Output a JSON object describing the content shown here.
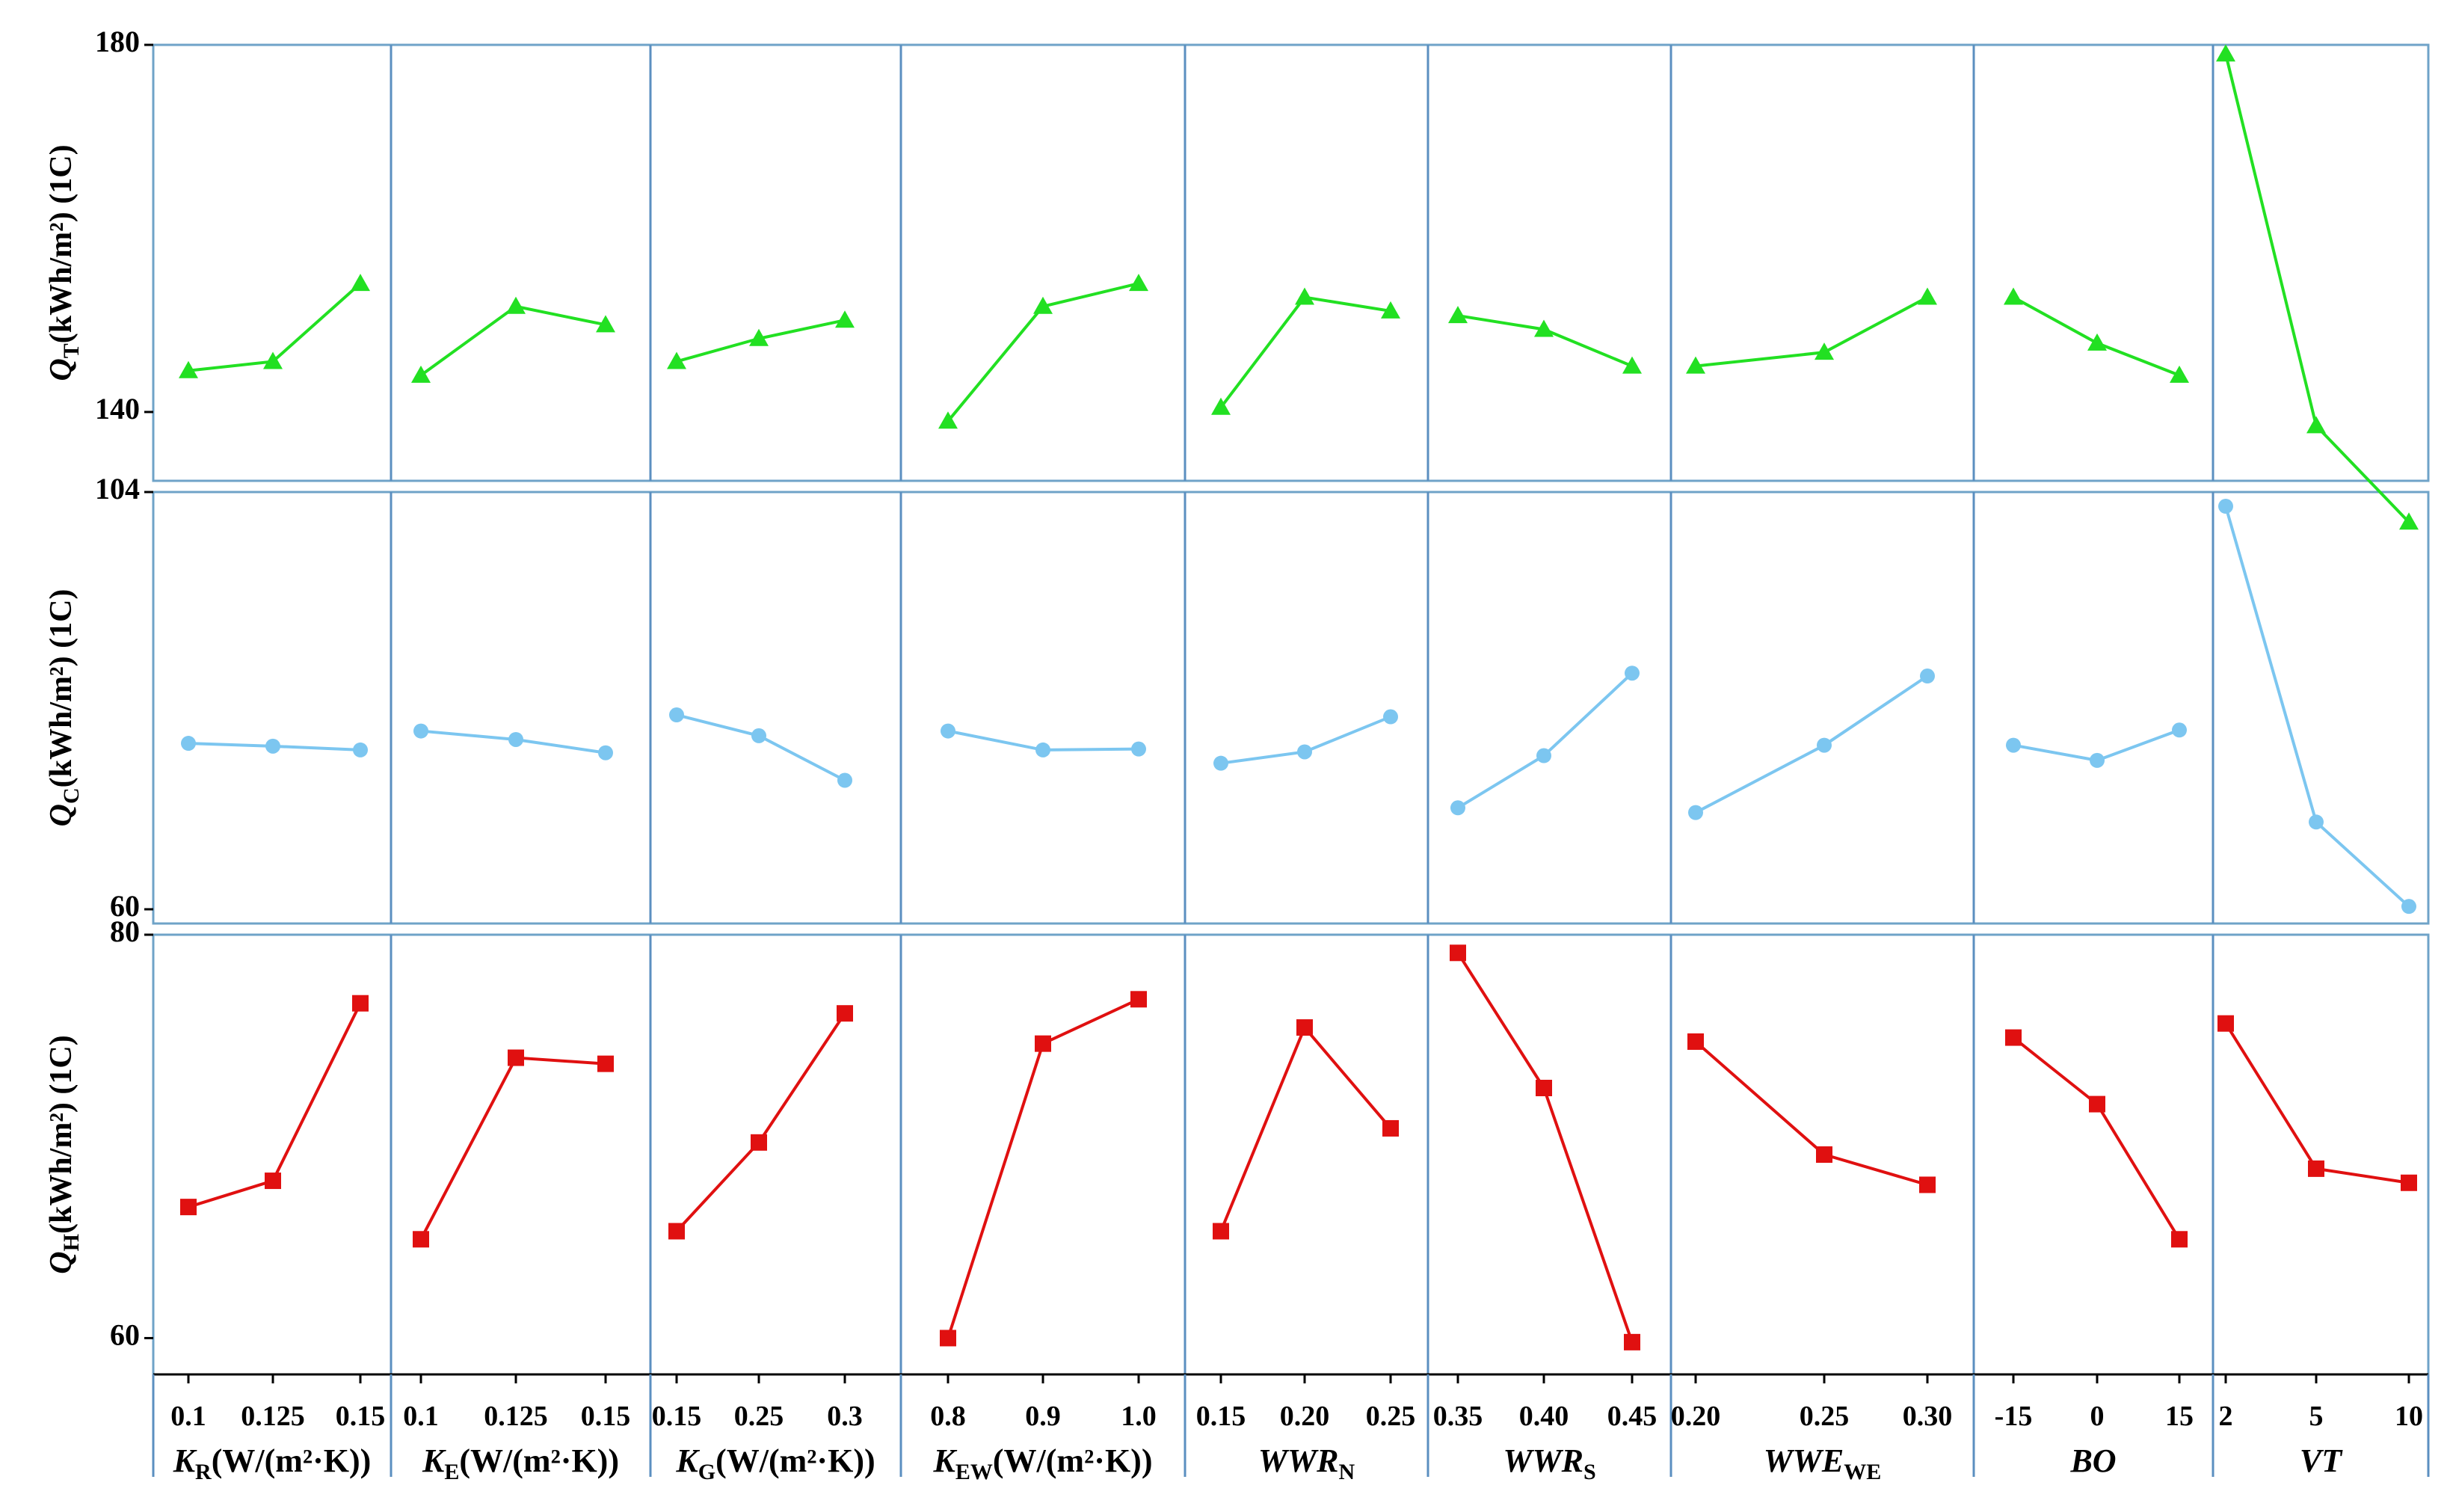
{
  "chart_data": {
    "type": "line",
    "colors": {
      "QT": "#22e022",
      "QC": "#7cc6f0",
      "QH": "#e01010",
      "frame": "#6fa3c8",
      "divider": "#5b8fc0"
    },
    "factors": [
      {
        "label_main": "K",
        "label_sub": "R",
        "label_rest": "(W/(m²·K))",
        "italic": true,
        "ticks": [
          "0.1",
          "0.125",
          "0.15"
        ]
      },
      {
        "label_main": "K",
        "label_sub": "E",
        "label_rest": "(W/(m²·K))",
        "italic": true,
        "ticks": [
          "0.1",
          "0.125",
          "0.15"
        ]
      },
      {
        "label_main": "K",
        "label_sub": "G",
        "label_rest": "(W/(m²·K))",
        "italic": true,
        "ticks": [
          "0.15",
          "0.25",
          "0.3"
        ]
      },
      {
        "label_main": "K",
        "label_sub": "EW",
        "label_rest": "(W/(m²·K))",
        "italic": true,
        "ticks": [
          "0.8",
          "0.9",
          "1.0"
        ]
      },
      {
        "label_main": "WWR",
        "label_sub": "N",
        "label_rest": "",
        "italic": true,
        "ticks": [
          "0.15",
          "0.20",
          "0.25"
        ]
      },
      {
        "label_main": "WWR",
        "label_sub": "S",
        "label_rest": "",
        "italic": true,
        "ticks": [
          "0.35",
          "0.40",
          "0.45"
        ]
      },
      {
        "label_main": "WWE",
        "label_sub": "WE",
        "label_rest": "",
        "italic": true,
        "ticks": [
          "0.20",
          "0.25",
          "0.30"
        ]
      },
      {
        "label_main": "BO",
        "label_sub": "",
        "label_rest": "",
        "italic": true,
        "ticks": [
          "-15",
          "0",
          "15"
        ]
      },
      {
        "label_main": "VT",
        "label_sub": "",
        "label_rest": "",
        "italic": true,
        "ticks": [
          "2",
          "5",
          "10"
        ]
      }
    ],
    "panels": [
      {
        "key": "QT",
        "ylabel_main": "Q",
        "ylabel_sub": "T",
        "ylabel_rest": "(kWh/m²) (1C)",
        "marker": "triangle",
        "ylim": [
          132.5,
          180
        ],
        "yticks": [
          "180",
          "140"
        ],
        "ytick_values": [
          180,
          140
        ],
        "series": [
          [
            144.5,
            145.5,
            154
          ],
          [
            144,
            151.5,
            149.5
          ],
          [
            145.5,
            148,
            150
          ],
          [
            139,
            151.5,
            154
          ],
          [
            140.5,
            152.5,
            151
          ],
          [
            150.5,
            149,
            145
          ],
          [
            145,
            146.5,
            152.5
          ],
          [
            152.5,
            147.5,
            144
          ],
          [
            179,
            138.5,
            128
          ]
        ]
      },
      {
        "key": "QC",
        "ylabel_main": "Q",
        "ylabel_sub": "C",
        "ylabel_rest": "(kWh/m²) (1C)",
        "marker": "circle",
        "ylim": [
          58.5,
          104
        ],
        "yticks": [
          "104",
          "60"
        ],
        "ytick_values": [
          104,
          60
        ],
        "series": [
          [
            77.5,
            77.2,
            76.8
          ],
          [
            78.8,
            77.9,
            76.5
          ],
          [
            80.5,
            78.3,
            73.6
          ],
          [
            78.8,
            76.8,
            76.9
          ],
          [
            75.4,
            76.6,
            80.3
          ],
          [
            70.7,
            76.2,
            84.9
          ],
          [
            70.2,
            77.3,
            84.6
          ],
          [
            77.3,
            75.7,
            78.9
          ],
          [
            102.5,
            69.2,
            60.3
          ]
        ]
      },
      {
        "key": "QH",
        "ylabel_main": "Q",
        "ylabel_sub": "H",
        "ylabel_rest": "(kWh/m²) (1C)",
        "marker": "square",
        "ylim": [
          58.2,
          80
        ],
        "yticks": [
          "80",
          "60"
        ],
        "ytick_values": [
          80,
          60
        ],
        "series": [
          [
            66.5,
            67.8,
            76.6
          ],
          [
            64.9,
            73.9,
            73.6
          ],
          [
            65.3,
            69.7,
            76.1
          ],
          [
            60,
            74.6,
            76.8
          ],
          [
            65.3,
            75.4,
            70.4
          ],
          [
            79.1,
            72.4,
            59.8
          ],
          [
            74.7,
            69.1,
            67.6
          ],
          [
            74.9,
            71.6,
            64.9
          ],
          [
            75.6,
            68.4,
            67.7
          ]
        ]
      }
    ]
  }
}
